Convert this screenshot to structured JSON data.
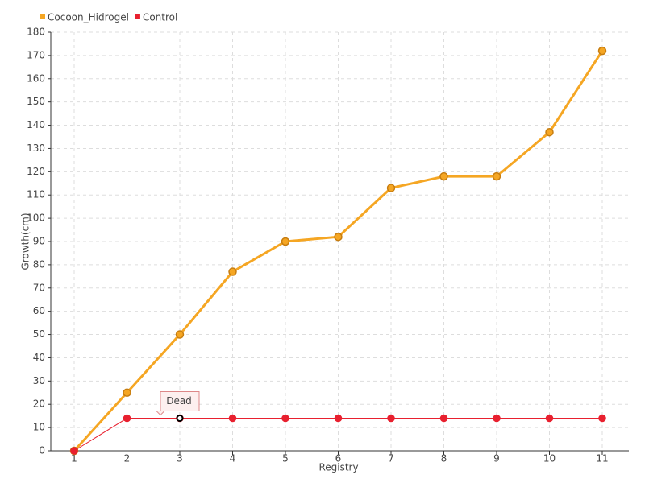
{
  "chart_data": {
    "type": "line",
    "x_label": "Registry",
    "y_label": "Growth(cm)",
    "categories": [
      "1",
      "2",
      "3",
      "4",
      "5",
      "6",
      "7",
      "8",
      "9",
      "10",
      "11"
    ],
    "series": [
      {
        "name": "Cocoon_Hidrogel",
        "color": "#f5a623",
        "values": [
          0,
          25,
          50,
          77,
          90,
          92,
          113,
          118,
          118,
          137,
          172
        ]
      },
      {
        "name": "Control",
        "color": "#e8202f",
        "values": [
          0,
          14,
          14,
          14,
          14,
          14,
          14,
          14,
          14,
          14,
          14
        ]
      }
    ],
    "annotation": "Dead",
    "ylim": [
      0,
      180
    ],
    "yticks": [
      0,
      10,
      20,
      30,
      40,
      50,
      60,
      70,
      80,
      90,
      100,
      110,
      120,
      130,
      140,
      150,
      160,
      170,
      180
    ],
    "grid": true,
    "legend": "top-left"
  }
}
